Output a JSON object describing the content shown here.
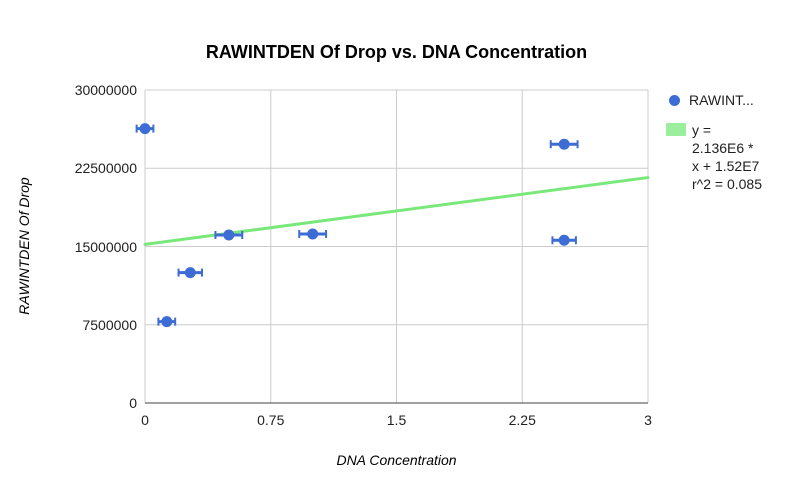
{
  "chart_data": {
    "type": "scatter",
    "title": "RAWINTDEN Of Drop vs. DNA Concentration",
    "xlabel": "DNA Concentration",
    "ylabel": "RAWINTDEN Of Drop",
    "xlim": [
      0,
      3
    ],
    "ylim": [
      0,
      30000000
    ],
    "x_ticks": [
      0,
      0.75,
      1.5,
      2.25,
      3
    ],
    "x_tick_labels": [
      "0",
      "0.75",
      "1.5",
      "2.25",
      "3"
    ],
    "y_ticks": [
      0,
      7500000,
      15000000,
      22500000,
      30000000
    ],
    "y_tick_labels": [
      "0",
      "7500000",
      "15000000",
      "22500000",
      "30000000"
    ],
    "grid": true,
    "legend_position": "right",
    "series": [
      {
        "name": "RAWINTDEN Of Drop",
        "legend_label": "RAWINT...",
        "color": "#3c6cd4",
        "points": [
          {
            "x": 0.0,
            "y": 26300000,
            "xerr": 0.05
          },
          {
            "x": 0.13,
            "y": 7800000,
            "xerr": 0.05
          },
          {
            "x": 0.27,
            "y": 12500000,
            "xerr": 0.07
          },
          {
            "x": 0.5,
            "y": 16100000,
            "xerr": 0.08
          },
          {
            "x": 1.0,
            "y": 16200000,
            "xerr": 0.08
          },
          {
            "x": 2.5,
            "y": 24800000,
            "xerr": 0.08
          },
          {
            "x": 2.5,
            "y": 15600000,
            "xerr": 0.07
          }
        ]
      }
    ],
    "trendline": {
      "slope": 2136000,
      "intercept": 15200000,
      "r_squared": 0.085,
      "color": "#79e87a",
      "legend_lines": [
        "y =",
        "2.136E6 *",
        "x + 1.52E7",
        "r^2 = 0.085"
      ]
    },
    "colors": {
      "gridline": "#cccccc",
      "axis_baseline": "#424242",
      "background": "#ffffff"
    }
  }
}
